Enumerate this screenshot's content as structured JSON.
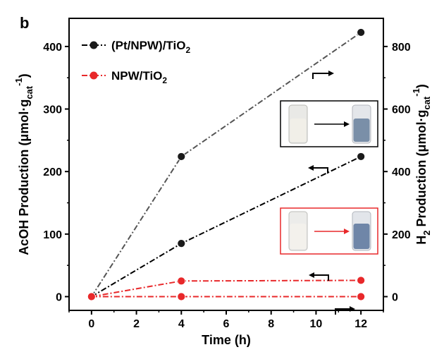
{
  "panel_label": "b",
  "chart_data": {
    "type": "line",
    "xlabel": "Time (h)",
    "ylabel_left": {
      "main": "AcOH Production (μmol·g",
      "sub": "cat",
      "sup": "-1",
      "close": ")"
    },
    "ylabel_right": {
      "pre": "H",
      "pre_sub": "2",
      "main": " Production (μmol·g",
      "sub": "cat",
      "sup": "-1",
      "close": ")"
    },
    "xlim": [
      -1,
      13
    ],
    "ylim_left": [
      -22,
      445
    ],
    "ylim_right": [
      -44,
      890
    ],
    "x_ticks": [
      0,
      2,
      4,
      6,
      8,
      10,
      12
    ],
    "y_ticks_left": [
      0,
      100,
      200,
      300,
      400
    ],
    "y_ticks_right": [
      0,
      200,
      400,
      600,
      800
    ],
    "series": [
      {
        "legend": {
          "main": "(Pt/NPW)/TiO",
          "sub": "2"
        },
        "axis": "left",
        "color": "#000000",
        "marker": "#1a1a1a",
        "x": [
          0,
          4,
          12
        ],
        "y": [
          0,
          85,
          224
        ]
      },
      {
        "axis": "right",
        "color": "#555555",
        "marker": "#1a1a1a",
        "x": [
          0,
          4,
          12
        ],
        "y": [
          0,
          448,
          845
        ]
      },
      {
        "legend": {
          "main": "NPW/TiO",
          "sub": "2"
        },
        "axis": "left",
        "color": "#e8282a",
        "marker": "#e8282a",
        "x": [
          0,
          4,
          12
        ],
        "y": [
          0,
          25,
          26
        ]
      },
      {
        "axis": "right",
        "color": "#e8282a",
        "marker": "#e8282a",
        "x": [
          0,
          4,
          12
        ],
        "y": [
          0,
          0,
          0
        ]
      }
    ],
    "insets": [
      {
        "name": "black-inset",
        "border": "#000000",
        "arrow": "#000000",
        "before_liquid": "#f1efe8",
        "after_liquid": "#7a8fa8"
      },
      {
        "name": "red-inset",
        "border": "#e8282a",
        "arrow": "#e8282a",
        "before_liquid": "#f3f1ec",
        "after_liquid": "#6f86a8"
      }
    ]
  }
}
